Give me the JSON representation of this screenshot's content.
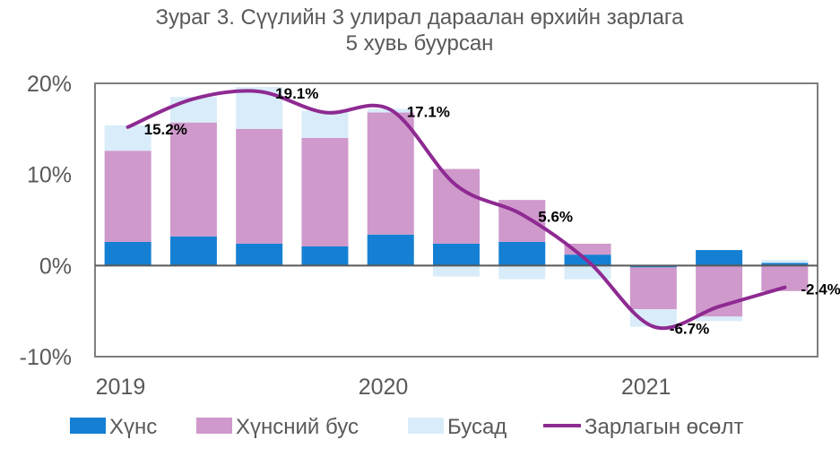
{
  "chart_data": {
    "type": "bar",
    "stacked": true,
    "title_lines": [
      "Зураг 3. Сүүлийн 3 улирал дараалан өрхийн зарлага",
      "5 хувь буурсан"
    ],
    "categories": [
      "2019Q1",
      "2019Q2",
      "2019Q3",
      "2019Q4",
      "2020Q1",
      "2020Q2",
      "2020Q3",
      "2020Q4",
      "2021Q1",
      "2021Q2",
      "2021Q3"
    ],
    "x_tick_labels": [
      {
        "label": "2019",
        "index": 0
      },
      {
        "label": "2020",
        "index": 4
      },
      {
        "label": "2021",
        "index": 8
      }
    ],
    "y_ticks": [
      -10,
      0,
      10,
      20
    ],
    "y_tick_labels": [
      "-10%",
      "0%",
      "10%",
      "20%"
    ],
    "ylim": [
      -10,
      20
    ],
    "series": [
      {
        "name": "Хүнс",
        "type": "bar",
        "color": "#1580D3",
        "values": [
          2.6,
          3.2,
          2.4,
          2.1,
          3.4,
          2.4,
          2.6,
          1.2,
          -0.2,
          1.7,
          0.3
        ]
      },
      {
        "name": "Хүнсний бус",
        "type": "bar",
        "color": "#CF99CC",
        "values": [
          10.0,
          12.5,
          12.6,
          11.9,
          13.4,
          8.2,
          4.6,
          1.2,
          -4.6,
          -5.6,
          -2.8
        ]
      },
      {
        "name": "Бусад",
        "type": "bar",
        "color": "#D9ECF9",
        "values": [
          2.8,
          2.8,
          4.6,
          3.0,
          0.4,
          -1.2,
          -1.5,
          -1.5,
          -1.9,
          -0.5,
          0.3
        ]
      },
      {
        "name": "Зарлагын өсөлт",
        "type": "line",
        "color": "#8E2A92",
        "values": [
          15.2,
          18.3,
          19.1,
          16.8,
          17.1,
          8.8,
          5.6,
          0.5,
          -6.7,
          -4.5,
          -2.4
        ]
      }
    ],
    "data_labels": [
      {
        "index": 0,
        "text": "15.2%"
      },
      {
        "index": 2,
        "text": "19.1%"
      },
      {
        "index": 4,
        "text": "17.1%"
      },
      {
        "index": 6,
        "text": "5.6%"
      },
      {
        "index": 8,
        "text": "-6.7%"
      },
      {
        "index": 10,
        "text": "-2.4%"
      }
    ],
    "legend_position": "bottom",
    "grid": false
  }
}
